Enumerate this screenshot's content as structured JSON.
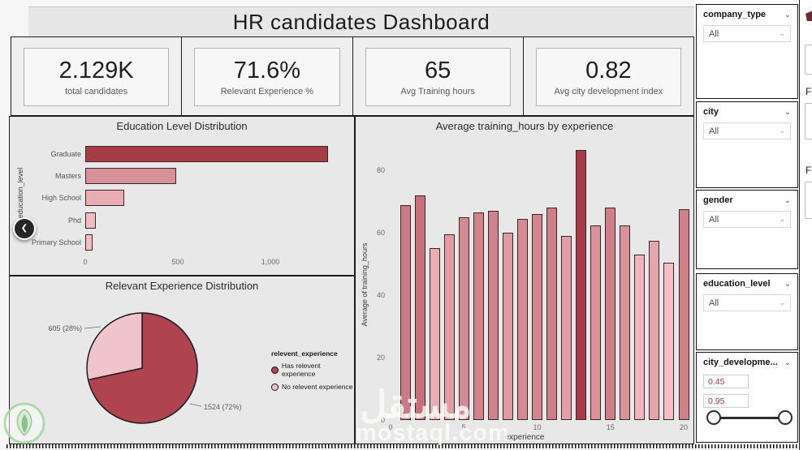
{
  "title": "HR candidates Dashboard",
  "kpis": [
    {
      "value": "2.129K",
      "label": "total candidates"
    },
    {
      "value": "71.6%",
      "label": "Relevant Experience %"
    },
    {
      "value": "65",
      "label": "Avg Training hours"
    },
    {
      "value": "0.82",
      "label": "Avg city development index"
    }
  ],
  "chart_data": [
    {
      "type": "bar",
      "orientation": "horizontal",
      "title": "Education Level Distribution",
      "ylabel": "education_level",
      "categories": [
        "Graduate",
        "Masters",
        "High School",
        "Phd",
        "Primary School"
      ],
      "values": [
        1311,
        490,
        211,
        57,
        40
      ],
      "xtick_values": [
        0,
        500,
        1000
      ],
      "xtick_labels": [
        "0",
        "500",
        "1,000"
      ],
      "xlim": [
        0,
        1400
      ],
      "color_min": "#f3bec5",
      "color_max": "#a63c48"
    },
    {
      "type": "bar",
      "orientation": "vertical",
      "title": "Average training_hours by experience",
      "xlabel": "experience",
      "ylabel": "Average of training_hours",
      "x": [
        1,
        2,
        3,
        4,
        5,
        6,
        7,
        8,
        9,
        10,
        11,
        12,
        13,
        14,
        15,
        16,
        17,
        18,
        19,
        20
      ],
      "values": [
        69,
        72,
        55,
        59.5,
        65,
        66.5,
        67,
        60,
        64.5,
        66,
        68,
        59,
        86.5,
        62.5,
        68,
        62.5,
        53,
        57.5,
        50.5,
        67.5
      ],
      "ytick_values": [
        0,
        20,
        40,
        60,
        80
      ],
      "xtick_values": [
        0,
        5,
        10,
        15,
        20
      ],
      "ylim": [
        0,
        90
      ],
      "color_min": "#f3bec5",
      "color_max": "#a63c48"
    },
    {
      "type": "pie",
      "title": "Relevant Experience Distribution",
      "legend_title": "relevent_experience",
      "slices": [
        {
          "label": "Has relevent experience",
          "value": 1524,
          "pct": 72,
          "callout": "1524 (72%)",
          "color": "#af4350"
        },
        {
          "label": "No relevent experience",
          "value": 605,
          "pct": 28,
          "callout": "605 (28%)",
          "color": "#f1c4cb"
        }
      ]
    }
  ],
  "slicers": [
    {
      "name": "company_type",
      "value": "All"
    },
    {
      "name": "city",
      "value": "All"
    },
    {
      "name": "gender",
      "value": "All"
    },
    {
      "name": "education_level",
      "value": "All"
    },
    {
      "name": "city_developme...",
      "min": "0.45",
      "max": "0.95"
    }
  ],
  "right_pane": {
    "labels": [
      "F",
      "F"
    ]
  },
  "icons": {
    "chevron_down": "⌄",
    "back": "❮"
  },
  "watermark": {
    "arabic": "مستقل",
    "latin": "mostaql.com"
  },
  "colors": {
    "accent_dark": "#a63c48",
    "accent_light": "#f3bec5",
    "panel_bg": "#e9e8e8",
    "border": "#1c1c1c"
  }
}
